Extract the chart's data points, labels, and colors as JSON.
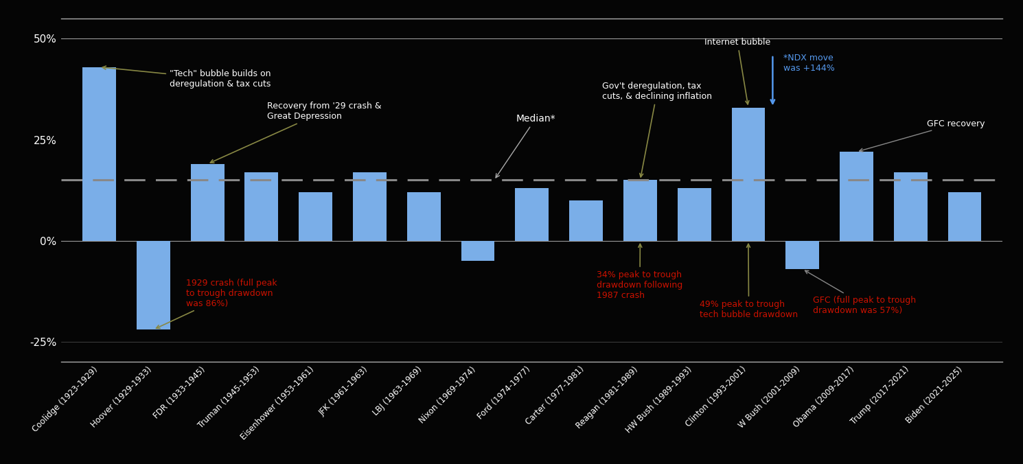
{
  "categories": [
    "Coolidge (1923-1929)",
    "Hoover (1929-1933)",
    "FDR (1933-1945)",
    "Truman (1945-1953)",
    "Eisenhower (1953-1961)",
    "JFK (1961-1963)",
    "LBJ (1963-1969)",
    "Nixon (1969-1974)",
    "Ford (1974-1977)",
    "Carter (1977-1981)",
    "Reagan (1981-1989)",
    "HW Bush (1989-1993)",
    "Clinton (1993-2001)",
    "W Bush (2001-2009)",
    "Obama (2009-2017)",
    "Trump (2017-2021)",
    "Biden (2021-2025)"
  ],
  "values": [
    43,
    -22,
    19,
    17,
    12,
    17,
    12,
    -5,
    13,
    10,
    15,
    13,
    33,
    -7,
    22,
    17,
    12
  ],
  "bar_color": "#7aaee8",
  "background_color": "#050505",
  "median_value": 15,
  "ylim": [
    -30,
    55
  ],
  "yticks": [
    -25,
    0,
    25,
    50
  ],
  "ytick_labels": [
    "-25%",
    "0%",
    "25%",
    "50%"
  ],
  "ndx_color": "#5599ee"
}
